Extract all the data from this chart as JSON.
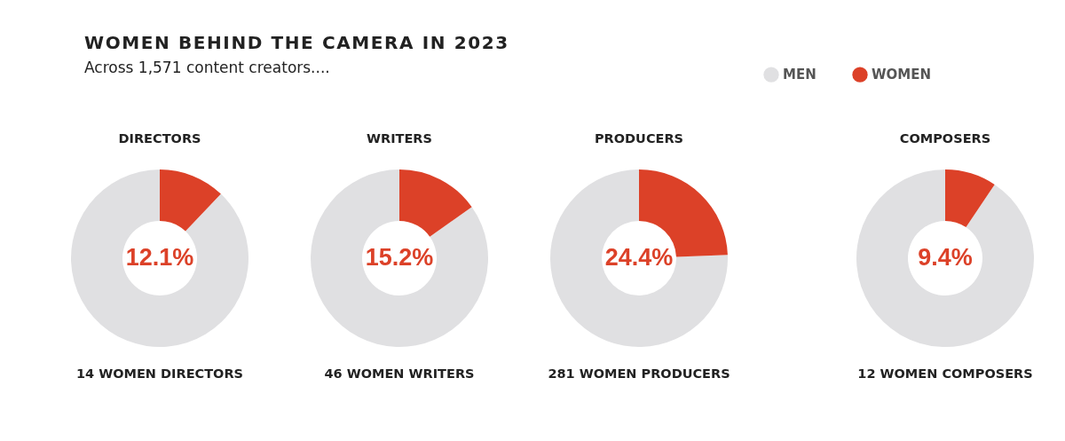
{
  "chart_data": [
    {
      "type": "other",
      "title": "WOMEN BEHIND THE CAMERA IN 2023",
      "subtitle": "Across 1,571 content creators...."
    },
    {
      "type": "donut",
      "title": "DIRECTORS",
      "categories": [
        null,
        null
      ],
      "values": [
        87.9,
        12.1
      ],
      "colors": [
        "#e0e0e2",
        "#dc4128"
      ],
      "value_labels": [
        null,
        "12.1%"
      ],
      "annotations": [
        "14 WOMEN DIRECTORS"
      ]
    },
    {
      "type": "donut",
      "title": "WRITERS",
      "categories": [
        null,
        null
      ],
      "values": [
        84.8,
        15.2
      ],
      "colors": [
        "#e0e0e2",
        "#dc4128"
      ],
      "value_labels": [
        null,
        "15.2%"
      ],
      "annotations": [
        "46 WOMEN WRITERS"
      ]
    },
    {
      "type": "donut",
      "title": "PRODUCERS",
      "categories": [
        null,
        null
      ],
      "values": [
        75.6,
        24.4
      ],
      "colors": [
        "#e0e0e2",
        "#dc4128"
      ],
      "value_labels": [
        null,
        "24.4%"
      ],
      "annotations": [
        "281 WOMEN PRODUCERS"
      ]
    },
    {
      "type": "donut",
      "title": "COMPOSERS",
      "categories": [
        "MEN",
        "WOMEN"
      ],
      "values": [
        90.6,
        9.4
      ],
      "colors": [
        "#e0e0e2",
        "#dc4128"
      ],
      "value_labels": [
        null,
        "9.4%"
      ],
      "annotations": [
        "12 WOMEN COMPOSERS"
      ],
      "legend": "top"
    }
  ]
}
